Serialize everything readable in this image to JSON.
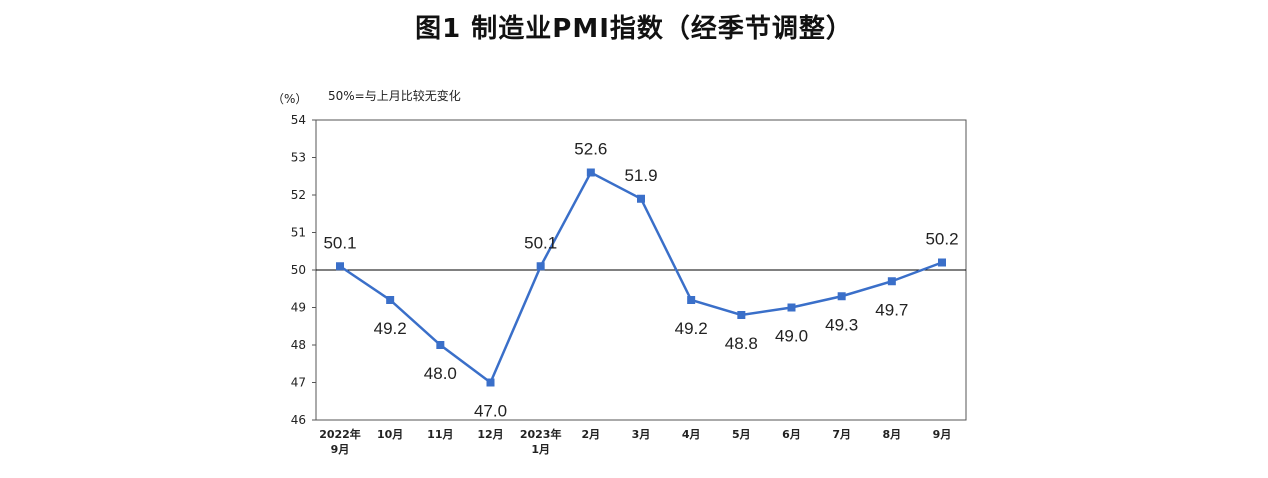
{
  "chart_data": {
    "type": "line",
    "title": "图1 制造业PMI指数（经季节调整）",
    "unit_label": "（%）",
    "note": "50%=与上月比较无变化",
    "ylim": [
      46,
      54
    ],
    "yticks": [
      "54",
      "53",
      "52",
      "51",
      "50",
      "49",
      "48",
      "47",
      "46"
    ],
    "reference_line": 50,
    "categories": [
      "2022年\n9月",
      "10月",
      "11月",
      "12月",
      "2023年\n1月",
      "2月",
      "3月",
      "4月",
      "5月",
      "6月",
      "7月",
      "8月",
      "9月"
    ],
    "series": [
      {
        "values": [
          50.1,
          49.2,
          48.0,
          47.0,
          50.1,
          52.6,
          51.9,
          49.2,
          48.8,
          49.0,
          49.3,
          49.7,
          50.2
        ],
        "labels": [
          "50.1",
          "49.2",
          "48.0",
          "47.0",
          "50.1",
          "52.6",
          "51.9",
          "49.2",
          "48.8",
          "49.0",
          "49.3",
          "49.7",
          "50.2"
        ],
        "label_pos": [
          "above",
          "below",
          "below",
          "below",
          "above",
          "above",
          "above",
          "below",
          "below",
          "below",
          "below",
          "below",
          "above"
        ],
        "color": "#3a6fc9"
      }
    ],
    "grid": false
  }
}
